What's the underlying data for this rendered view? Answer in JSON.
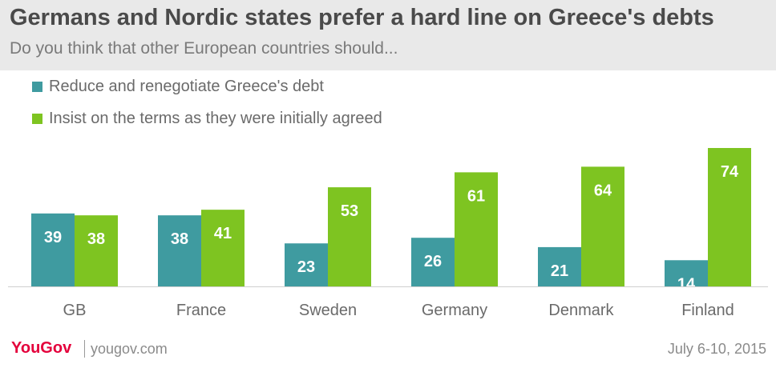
{
  "chart_data": {
    "type": "bar",
    "title": "Germans and Nordic states prefer a hard line on Greece's debts",
    "subtitle": "Do you think that other European countries should...",
    "categories": [
      "GB",
      "France",
      "Sweden",
      "Germany",
      "Denmark",
      "Finland"
    ],
    "series": [
      {
        "name": "Reduce and renegotiate Greece's debt",
        "color": "#3f9ba0",
        "values": [
          39,
          38,
          23,
          26,
          21,
          14
        ]
      },
      {
        "name": "Insist on the terms as they were initially agreed",
        "color": "#7ec421",
        "values": [
          38,
          41,
          53,
          61,
          64,
          74
        ]
      }
    ],
    "ylim": [
      0,
      74
    ],
    "grid": false,
    "legend": "top-left",
    "xlabel": "",
    "ylabel": ""
  },
  "footer": {
    "logo": "YouGov",
    "site": "yougov.com",
    "date": "July 6-10, 2015"
  }
}
